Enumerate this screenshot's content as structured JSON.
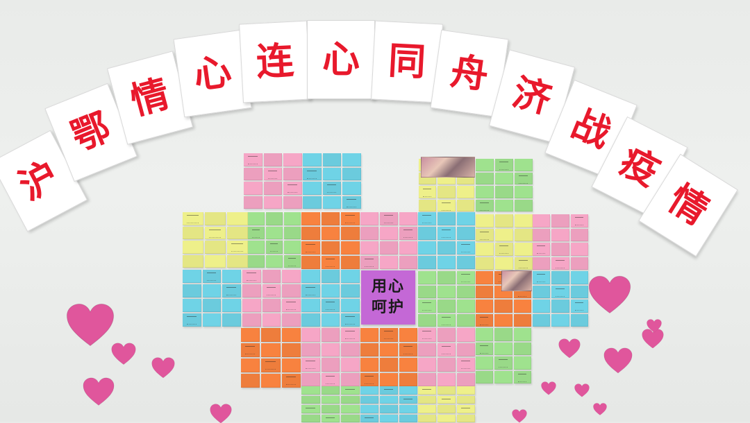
{
  "banner": {
    "characters": [
      "沪",
      "鄂",
      "情",
      "心",
      "连",
      "心",
      "同",
      "舟",
      "济",
      "战",
      "疫",
      "情"
    ]
  },
  "center_note": {
    "line1": "用心",
    "line2": "呵护"
  },
  "colors": {
    "banner_text": "#e8192c",
    "heart": "#e0569c",
    "note_pink": "#f6a6c6",
    "note_blue": "#6fd3e6",
    "note_yellow": "#eef08a",
    "note_green": "#9fe28e",
    "note_orange": "#f8823f",
    "note_purple": "#c468d6"
  }
}
